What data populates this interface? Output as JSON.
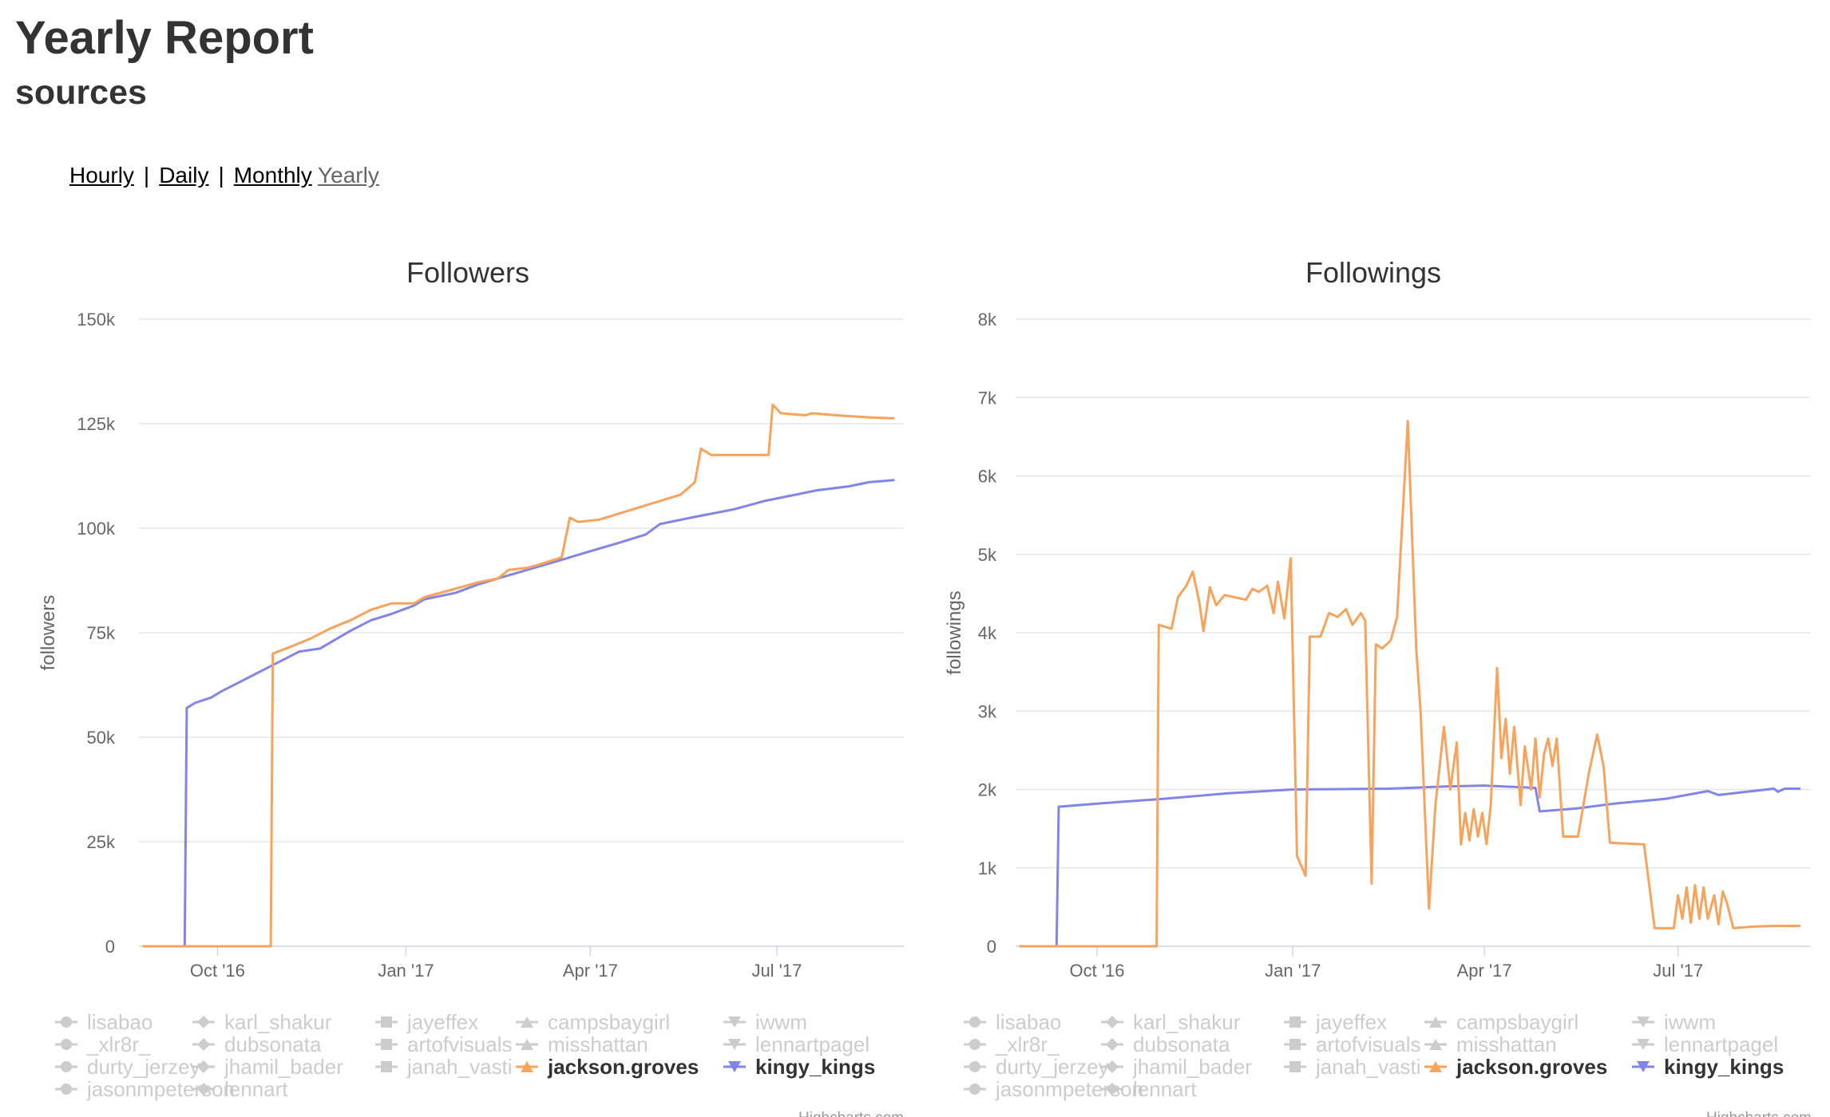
{
  "page": {
    "title": "Yearly Report",
    "subtitle": "sources"
  },
  "nav": {
    "links": [
      {
        "label": "Hourly",
        "current": false
      },
      {
        "label": "Daily",
        "current": false
      },
      {
        "label": "Monthly",
        "current": false
      },
      {
        "label": "Yearly",
        "current": true
      }
    ],
    "separator": "|"
  },
  "colors": {
    "jackson_groves": "#f7a35c",
    "kingy_kings": "#8085e9",
    "inactive_legend": "#cccccc",
    "grid": "#e6e6e6",
    "axis_text": "#666666",
    "title_text": "#333333"
  },
  "chart_data": [
    {
      "type": "line",
      "title": "Followers",
      "ylabel": "followers",
      "xlabel": "",
      "x_is_date": true,
      "xlim": [
        "2016-08-26",
        "2017-09-01"
      ],
      "ylim": [
        0,
        150000
      ],
      "yticks": [
        0,
        25000,
        50000,
        75000,
        100000,
        125000,
        150000
      ],
      "ytick_labels": [
        "0",
        "25k",
        "50k",
        "75k",
        "100k",
        "125k",
        "150k"
      ],
      "xticks": [
        "2016-10-01",
        "2017-01-01",
        "2017-04-01",
        "2017-07-01"
      ],
      "xtick_labels": [
        "Oct '16",
        "Jan '17",
        "Apr '17",
        "Jul '17"
      ],
      "grid": true,
      "legend_position": "bottom",
      "series": [
        {
          "name": "kingy_kings",
          "color": "#8085e9",
          "marker": "triangle-down",
          "visible": true,
          "points": [
            [
              "2016-08-26",
              0
            ],
            [
              "2016-09-15",
              0
            ],
            [
              "2016-09-16",
              57000
            ],
            [
              "2016-09-20",
              58200
            ],
            [
              "2016-09-28",
              59500
            ],
            [
              "2016-10-03",
              61000
            ],
            [
              "2016-10-13",
              63500
            ],
            [
              "2016-10-23",
              66000
            ],
            [
              "2016-11-02",
              68500
            ],
            [
              "2016-11-10",
              70500
            ],
            [
              "2016-11-20",
              71200
            ],
            [
              "2016-12-05",
              75500
            ],
            [
              "2016-12-15",
              78000
            ],
            [
              "2016-12-25",
              79500
            ],
            [
              "2017-01-05",
              81500
            ],
            [
              "2017-01-10",
              83000
            ],
            [
              "2017-01-25",
              84500
            ],
            [
              "2017-02-05",
              86500
            ],
            [
              "2017-02-15",
              88000
            ],
            [
              "2017-03-01",
              90000
            ],
            [
              "2017-03-15",
              92000
            ],
            [
              "2017-04-01",
              94500
            ],
            [
              "2017-04-15",
              96500
            ],
            [
              "2017-04-28",
              98500
            ],
            [
              "2017-05-05",
              101000
            ],
            [
              "2017-05-20",
              102500
            ],
            [
              "2017-06-10",
              104500
            ],
            [
              "2017-06-25",
              106500
            ],
            [
              "2017-07-10",
              108000
            ],
            [
              "2017-07-20",
              109000
            ],
            [
              "2017-08-05",
              110000
            ],
            [
              "2017-08-15",
              111000
            ],
            [
              "2017-08-27",
              111500
            ]
          ]
        },
        {
          "name": "jackson.groves",
          "color": "#f7a35c",
          "marker": "triangle",
          "visible": true,
          "points": [
            [
              "2016-08-26",
              0
            ],
            [
              "2016-10-27",
              0
            ],
            [
              "2016-10-28",
              70000
            ],
            [
              "2016-11-05",
              71500
            ],
            [
              "2016-11-15",
              73500
            ],
            [
              "2016-11-25",
              76000
            ],
            [
              "2016-12-05",
              78000
            ],
            [
              "2016-12-15",
              80500
            ],
            [
              "2016-12-25",
              82000
            ],
            [
              "2017-01-05",
              82000
            ],
            [
              "2017-01-10",
              83500
            ],
            [
              "2017-01-25",
              85500
            ],
            [
              "2017-02-05",
              87000
            ],
            [
              "2017-02-15",
              88000
            ],
            [
              "2017-02-20",
              90000
            ],
            [
              "2017-03-01",
              90500
            ],
            [
              "2017-03-05",
              91000
            ],
            [
              "2017-03-18",
              93000
            ],
            [
              "2017-03-22",
              102500
            ],
            [
              "2017-03-26",
              101500
            ],
            [
              "2017-04-05",
              102000
            ],
            [
              "2017-04-15",
              103500
            ],
            [
              "2017-04-25",
              105000
            ],
            [
              "2017-05-05",
              106500
            ],
            [
              "2017-05-15",
              108000
            ],
            [
              "2017-05-22",
              111000
            ],
            [
              "2017-05-25",
              119000
            ],
            [
              "2017-05-30",
              117500
            ],
            [
              "2017-06-15",
              117500
            ],
            [
              "2017-06-27",
              117500
            ],
            [
              "2017-06-29",
              129500
            ],
            [
              "2017-07-03",
              127500
            ],
            [
              "2017-07-15",
              127000
            ],
            [
              "2017-07-18",
              127500
            ],
            [
              "2017-07-30",
              127000
            ],
            [
              "2017-08-15",
              126500
            ],
            [
              "2017-08-27",
              126300
            ]
          ]
        }
      ]
    },
    {
      "type": "line",
      "title": "Followings",
      "ylabel": "followings",
      "xlabel": "",
      "x_is_date": true,
      "xlim": [
        "2016-08-26",
        "2017-09-01"
      ],
      "ylim": [
        0,
        8000
      ],
      "yticks": [
        0,
        1000,
        2000,
        3000,
        4000,
        5000,
        6000,
        7000,
        8000
      ],
      "ytick_labels": [
        "0",
        "1k",
        "2k",
        "3k",
        "4k",
        "5k",
        "6k",
        "7k",
        "8k"
      ],
      "xticks": [
        "2016-10-01",
        "2017-01-01",
        "2017-04-01",
        "2017-07-01"
      ],
      "xtick_labels": [
        "Oct '16",
        "Jan '17",
        "Apr '17",
        "Jul '17"
      ],
      "grid": true,
      "legend_position": "bottom",
      "series": [
        {
          "name": "kingy_kings",
          "color": "#8085e9",
          "marker": "triangle-down",
          "visible": true,
          "points": [
            [
              "2016-08-26",
              0
            ],
            [
              "2016-09-12",
              0
            ],
            [
              "2016-09-13",
              1780
            ],
            [
              "2016-10-01",
              1820
            ],
            [
              "2016-11-01",
              1880
            ],
            [
              "2016-12-01",
              1950
            ],
            [
              "2017-01-01",
              2000
            ],
            [
              "2017-02-15",
              2010
            ],
            [
              "2017-03-15",
              2040
            ],
            [
              "2017-04-01",
              2050
            ],
            [
              "2017-04-25",
              2020
            ],
            [
              "2017-04-27",
              1720
            ],
            [
              "2017-05-15",
              1760
            ],
            [
              "2017-06-01",
              1820
            ],
            [
              "2017-06-25",
              1880
            ],
            [
              "2017-07-15",
              1980
            ],
            [
              "2017-07-20",
              1930
            ],
            [
              "2017-08-05",
              1980
            ],
            [
              "2017-08-15",
              2010
            ],
            [
              "2017-08-17",
              1970
            ],
            [
              "2017-08-20",
              2010
            ],
            [
              "2017-08-27",
              2010
            ]
          ]
        },
        {
          "name": "jackson.groves",
          "color": "#f7a35c",
          "marker": "triangle",
          "visible": true,
          "points": [
            [
              "2016-08-26",
              0
            ],
            [
              "2016-10-29",
              0
            ],
            [
              "2016-10-30",
              4100
            ],
            [
              "2016-11-05",
              4050
            ],
            [
              "2016-11-08",
              4450
            ],
            [
              "2016-11-12",
              4600
            ],
            [
              "2016-11-15",
              4780
            ],
            [
              "2016-11-18",
              4400
            ],
            [
              "2016-11-20",
              4020
            ],
            [
              "2016-11-23",
              4580
            ],
            [
              "2016-11-26",
              4350
            ],
            [
              "2016-11-30",
              4480
            ],
            [
              "2016-12-05",
              4450
            ],
            [
              "2016-12-10",
              4420
            ],
            [
              "2016-12-13",
              4560
            ],
            [
              "2016-12-16",
              4520
            ],
            [
              "2016-12-20",
              4600
            ],
            [
              "2016-12-23",
              4250
            ],
            [
              "2016-12-25",
              4650
            ],
            [
              "2016-12-28",
              4180
            ],
            [
              "2016-12-31",
              4950
            ],
            [
              "2017-01-03",
              1150
            ],
            [
              "2017-01-07",
              900
            ],
            [
              "2017-01-09",
              3950
            ],
            [
              "2017-01-14",
              3950
            ],
            [
              "2017-01-18",
              4250
            ],
            [
              "2017-01-22",
              4200
            ],
            [
              "2017-01-26",
              4300
            ],
            [
              "2017-01-29",
              4100
            ],
            [
              "2017-02-02",
              4250
            ],
            [
              "2017-02-04",
              4150
            ],
            [
              "2017-02-07",
              800
            ],
            [
              "2017-02-09",
              3850
            ],
            [
              "2017-02-12",
              3800
            ],
            [
              "2017-02-16",
              3900
            ],
            [
              "2017-02-19",
              4200
            ],
            [
              "2017-02-24",
              6700
            ],
            [
              "2017-02-28",
              3800
            ],
            [
              "2017-03-02",
              3000
            ],
            [
              "2017-03-06",
              480
            ],
            [
              "2017-03-09",
              1800
            ],
            [
              "2017-03-13",
              2800
            ],
            [
              "2017-03-16",
              2000
            ],
            [
              "2017-03-19",
              2600
            ],
            [
              "2017-03-21",
              1300
            ],
            [
              "2017-03-23",
              1700
            ],
            [
              "2017-03-25",
              1350
            ],
            [
              "2017-03-27",
              1750
            ],
            [
              "2017-03-29",
              1400
            ],
            [
              "2017-03-31",
              1700
            ],
            [
              "2017-04-02",
              1300
            ],
            [
              "2017-04-04",
              1800
            ],
            [
              "2017-04-07",
              3550
            ],
            [
              "2017-04-09",
              2400
            ],
            [
              "2017-04-11",
              2900
            ],
            [
              "2017-04-13",
              2200
            ],
            [
              "2017-04-15",
              2800
            ],
            [
              "2017-04-18",
              1800
            ],
            [
              "2017-04-20",
              2550
            ],
            [
              "2017-04-23",
              2000
            ],
            [
              "2017-04-25",
              2650
            ],
            [
              "2017-04-27",
              1900
            ],
            [
              "2017-04-29",
              2450
            ],
            [
              "2017-05-01",
              2650
            ],
            [
              "2017-05-03",
              2300
            ],
            [
              "2017-05-05",
              2650
            ],
            [
              "2017-05-08",
              1400
            ],
            [
              "2017-05-15",
              1400
            ],
            [
              "2017-05-20",
              2200
            ],
            [
              "2017-05-24",
              2700
            ],
            [
              "2017-05-27",
              2300
            ],
            [
              "2017-05-30",
              1320
            ],
            [
              "2017-06-15",
              1300
            ],
            [
              "2017-06-20",
              230
            ],
            [
              "2017-06-29",
              230
            ],
            [
              "2017-07-01",
              650
            ],
            [
              "2017-07-03",
              350
            ],
            [
              "2017-07-05",
              750
            ],
            [
              "2017-07-07",
              300
            ],
            [
              "2017-07-09",
              780
            ],
            [
              "2017-07-11",
              350
            ],
            [
              "2017-07-13",
              750
            ],
            [
              "2017-07-15",
              350
            ],
            [
              "2017-07-18",
              650
            ],
            [
              "2017-07-20",
              280
            ],
            [
              "2017-07-22",
              700
            ],
            [
              "2017-07-24",
              550
            ],
            [
              "2017-07-27",
              230
            ],
            [
              "2017-08-05",
              250
            ],
            [
              "2017-08-15",
              260
            ],
            [
              "2017-08-27",
              260
            ]
          ]
        }
      ]
    }
  ],
  "legend": {
    "items": [
      {
        "name": "lisabao",
        "marker": "circle",
        "active": false
      },
      {
        "name": "karl_shakur",
        "marker": "diamond",
        "active": false
      },
      {
        "name": "jayeffex",
        "marker": "square",
        "active": false
      },
      {
        "name": "campsbaygirl",
        "marker": "triangle",
        "active": false
      },
      {
        "name": "iwwm",
        "marker": "triangle-down",
        "active": false
      },
      {
        "name": "_xlr8r_",
        "marker": "circle",
        "active": false
      },
      {
        "name": "dubsonata",
        "marker": "diamond",
        "active": false
      },
      {
        "name": "artofvisuals",
        "marker": "square",
        "active": false
      },
      {
        "name": "misshattan",
        "marker": "triangle",
        "active": false
      },
      {
        "name": "lennartpagel",
        "marker": "triangle-down",
        "active": false
      },
      {
        "name": "durty_jerzey",
        "marker": "circle",
        "active": false
      },
      {
        "name": "jhamil_bader",
        "marker": "diamond",
        "active": false
      },
      {
        "name": "janah_vasti",
        "marker": "square",
        "active": false
      },
      {
        "name": "jackson.groves",
        "marker": "triangle",
        "active": true,
        "color": "#f7a35c"
      },
      {
        "name": "kingy_kings",
        "marker": "triangle-down",
        "active": true,
        "color": "#8085e9"
      },
      {
        "name": "jasonmpeterson",
        "marker": "circle",
        "active": false
      },
      {
        "name": "lennart",
        "marker": "diamond",
        "active": false
      }
    ]
  },
  "credits": "Highcharts.com"
}
